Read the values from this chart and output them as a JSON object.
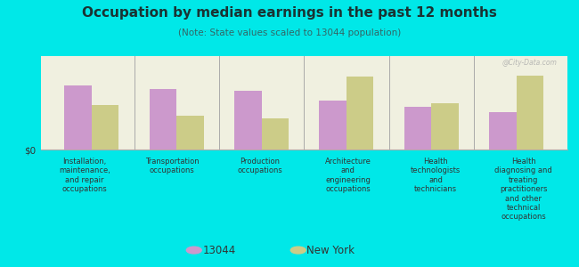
{
  "title": "Occupation by median earnings in the past 12 months",
  "subtitle": "(Note: State values scaled to 13044 population)",
  "categories": [
    "Installation,\nmaintenance,\nand repair\noccupations",
    "Transportation\noccupations",
    "Production\noccupations",
    "Architecture\nand\nengineering\noccupations",
    "Health\ntechnologists\nand\ntechnicians",
    "Health\ndiagnosing and\ntreating\npractitioners\nand other\ntechnical\noccupations"
  ],
  "values_13044": [
    0.72,
    0.68,
    0.66,
    0.55,
    0.48,
    0.42
  ],
  "values_ny": [
    0.5,
    0.38,
    0.35,
    0.82,
    0.52,
    0.83
  ],
  "color_13044": "#cc99cc",
  "color_ny": "#cccc88",
  "background_color": "#00e8e8",
  "chart_bg": "#f0f0e0",
  "title_color": "#1a3333",
  "subtitle_color": "#336666",
  "ylabel": "$0",
  "legend_13044": "13044",
  "legend_ny": "New York",
  "watermark": "@City-Data.com"
}
